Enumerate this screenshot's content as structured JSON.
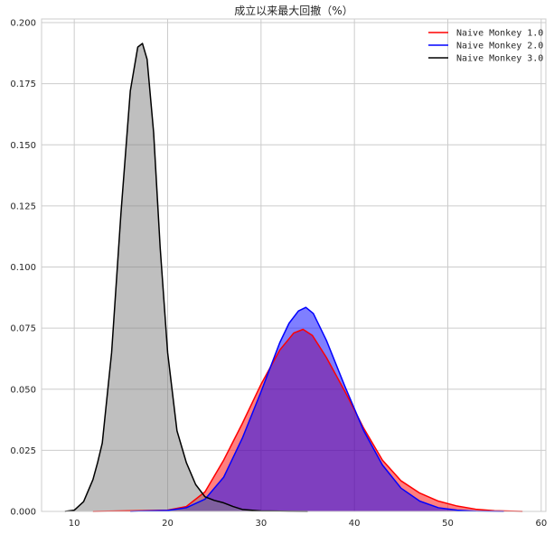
{
  "chart_data": {
    "type": "area",
    "title": "成立以来最大回撤（%）",
    "xlabel": "",
    "ylabel": "",
    "xlim": [
      6.5,
      60.5
    ],
    "ylim": [
      0,
      0.2015
    ],
    "x_ticks": [
      10,
      20,
      30,
      40,
      50,
      60
    ],
    "y_ticks": [
      0.0,
      0.025,
      0.05,
      0.075,
      0.1,
      0.125,
      0.15,
      0.175,
      0.2
    ],
    "x_tick_labels": [
      "10",
      "20",
      "30",
      "40",
      "50",
      "60"
    ],
    "y_tick_labels": [
      "0.000",
      "0.025",
      "0.050",
      "0.075",
      "0.100",
      "0.125",
      "0.150",
      "0.175",
      "0.200"
    ],
    "grid": true,
    "legend_position": "top-right",
    "series": [
      {
        "name": "Naive Monkey 1.0",
        "color": "#ff0000",
        "fill": "#ff0000",
        "x": [
          12,
          20,
          22,
          24,
          26,
          28,
          30,
          32,
          33.5,
          34.5,
          35.5,
          37,
          39,
          41,
          43,
          45,
          47,
          49,
          51,
          53,
          55,
          58
        ],
        "y": [
          0.0,
          0.0005,
          0.002,
          0.008,
          0.021,
          0.036,
          0.052,
          0.066,
          0.073,
          0.0745,
          0.072,
          0.063,
          0.049,
          0.034,
          0.021,
          0.0125,
          0.0075,
          0.0042,
          0.0022,
          0.0009,
          0.0003,
          0.0
        ]
      },
      {
        "name": "Naive Monkey 2.0",
        "color": "#0000ff",
        "fill": "#0000ff",
        "x": [
          16,
          20,
          22,
          24,
          26,
          28,
          30,
          32,
          33,
          34,
          34.8,
          35.6,
          37,
          39,
          41,
          43,
          45,
          47,
          49,
          51,
          53,
          56
        ],
        "y": [
          0.0,
          0.0004,
          0.0015,
          0.005,
          0.014,
          0.03,
          0.049,
          0.069,
          0.077,
          0.082,
          0.0835,
          0.081,
          0.07,
          0.051,
          0.033,
          0.019,
          0.0095,
          0.0042,
          0.0015,
          0.0005,
          0.0001,
          0.0
        ]
      },
      {
        "name": "Naive Monkey 3.0",
        "color": "#000000",
        "fill": "#808080",
        "x": [
          9,
          10,
          11,
          12,
          12.5,
          13,
          14,
          15,
          16,
          16.8,
          17.3,
          17.8,
          18.5,
          19.2,
          20,
          21,
          22,
          23,
          24,
          25,
          26,
          27,
          28,
          30,
          33,
          35
        ],
        "y": [
          0.0,
          0.0005,
          0.004,
          0.013,
          0.02,
          0.028,
          0.065,
          0.122,
          0.172,
          0.19,
          0.1915,
          0.185,
          0.155,
          0.108,
          0.065,
          0.033,
          0.02,
          0.011,
          0.006,
          0.0045,
          0.0035,
          0.002,
          0.0008,
          0.0002,
          5e-05,
          0.0
        ]
      }
    ]
  }
}
